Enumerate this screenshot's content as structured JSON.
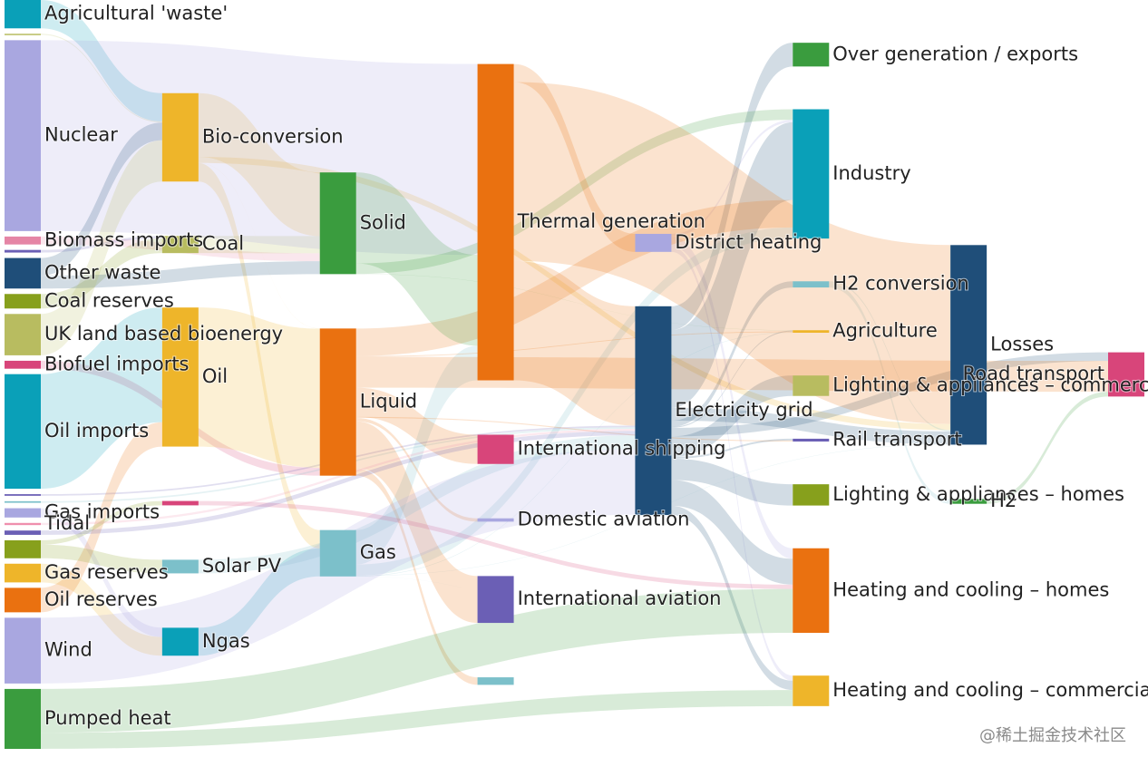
{
  "chart_data": {
    "type": "sankey",
    "watermark": "@稀土掘金技术社区",
    "nodes": [
      {
        "label": "Agricultural 'waste'",
        "color": "#0aa0b8"
      },
      {
        "label": null,
        "color": "#b8bc60"
      },
      {
        "label": "Nuclear",
        "color": "#a9a7e0"
      },
      {
        "label": "Biomass imports",
        "color": "#e585a5"
      },
      {
        "label": null,
        "color": "#6b5fb5"
      },
      {
        "label": "Other waste",
        "color": "#1f4e79"
      },
      {
        "label": "Coal reserves",
        "color": "#87a01c"
      },
      {
        "label": "UK land based bioenergy",
        "color": "#b8bc60"
      },
      {
        "label": "Biofuel imports",
        "color": "#d8457a"
      },
      {
        "label": "Oil imports",
        "color": "#0aa0b8"
      },
      {
        "label": null,
        "color": "#6b5fb5"
      },
      {
        "label": null,
        "color": "#7cc0ca"
      },
      {
        "label": "Gas imports",
        "color": "#a9a7e0"
      },
      {
        "label": "Tidal",
        "color": "#ef8fae"
      },
      {
        "label": null,
        "color": "#6b5fb5"
      },
      {
        "label": null,
        "color": "#87a01c"
      },
      {
        "label": "Gas reserves",
        "color": "#eeb52a"
      },
      {
        "label": "Oil reserves",
        "color": "#ea7110"
      },
      {
        "label": "Wind",
        "color": "#a9a7e0"
      },
      {
        "label": "Pumped heat",
        "color": "#3a9c3e"
      },
      {
        "label": "Bio-conversion",
        "color": "#eeb52a"
      },
      {
        "label": "Coal",
        "color": "#b8bc60"
      },
      {
        "label": "Oil",
        "color": "#eeb52a"
      },
      {
        "label": null,
        "color": "#d8457a"
      },
      {
        "label": "Solar PV",
        "color": "#7cc0ca"
      },
      {
        "label": "Ngas",
        "color": "#0aa0b8"
      },
      {
        "label": "Solid",
        "color": "#3a9c3e"
      },
      {
        "label": "Liquid",
        "color": "#ea7110"
      },
      {
        "label": "Gas",
        "color": "#7cc0ca"
      },
      {
        "label": "Thermal generation",
        "color": "#ea7110"
      },
      {
        "label": "International shipping",
        "color": "#d8457a"
      },
      {
        "label": "Domestic aviation",
        "color": "#a9a7e0"
      },
      {
        "label": "International aviation",
        "color": "#6b5fb5"
      },
      {
        "label": null,
        "color": "#7cc0ca"
      },
      {
        "label": "District heating",
        "color": "#a9a7e0"
      },
      {
        "label": "Electricity grid",
        "color": "#1f4e79"
      },
      {
        "label": "Over generation / exports",
        "color": "#3a9c3e"
      },
      {
        "label": "Industry",
        "color": "#0aa0b8"
      },
      {
        "label": "H2 conversion",
        "color": "#7cc0ca"
      },
      {
        "label": "Agriculture",
        "color": "#eeb52a"
      },
      {
        "label": "Lighting & appliances – commercial",
        "color": "#b8bc60"
      },
      {
        "label": "Rail transport",
        "color": "#6b5fb5"
      },
      {
        "label": "Lighting & appliances – homes",
        "color": "#87a01c"
      },
      {
        "label": "Heating and cooling – homes",
        "color": "#ea7110"
      },
      {
        "label": "Heating and cooling – commercial",
        "color": "#eeb52a"
      },
      {
        "label": "Losses",
        "color": "#1f4e79"
      },
      {
        "label": "H2",
        "color": "#3a9c3e"
      },
      {
        "label": "Road transport",
        "color": "#d8457a"
      }
    ],
    "links": [
      {
        "source": 0,
        "target": 20,
        "value": 124.729
      },
      {
        "source": 20,
        "target": 27,
        "value": 0.597
      },
      {
        "source": 20,
        "target": 45,
        "value": 26.862
      },
      {
        "source": 20,
        "target": 26,
        "value": 280.322
      },
      {
        "source": 20,
        "target": 28,
        "value": 81.144
      },
      {
        "source": 8,
        "target": 27,
        "value": 35
      },
      {
        "source": 3,
        "target": 26,
        "value": 35
      },
      {
        "source": 4,
        "target": 21,
        "value": 11.606
      },
      {
        "source": 6,
        "target": 21,
        "value": 63.965
      },
      {
        "source": 21,
        "target": 26,
        "value": 75.571
      },
      {
        "source": 34,
        "target": 37,
        "value": 10.639
      },
      {
        "source": 34,
        "target": 44,
        "value": 22.505
      },
      {
        "source": 34,
        "target": 43,
        "value": 46.184
      },
      {
        "source": 35,
        "target": 36,
        "value": 104.453
      },
      {
        "source": 35,
        "target": 43,
        "value": 113.726
      },
      {
        "source": 35,
        "target": 38,
        "value": 27.14
      },
      {
        "source": 35,
        "target": 37,
        "value": 342.165
      },
      {
        "source": 35,
        "target": 47,
        "value": 37.797
      },
      {
        "source": 35,
        "target": 39,
        "value": 4.412
      },
      {
        "source": 35,
        "target": 44,
        "value": 40.858
      },
      {
        "source": 35,
        "target": 45,
        "value": 56.691
      },
      {
        "source": 35,
        "target": 41,
        "value": 7.863
      },
      {
        "source": 35,
        "target": 40,
        "value": 90.008
      },
      {
        "source": 35,
        "target": 42,
        "value": 93.494
      },
      {
        "source": 12,
        "target": 25,
        "value": 40.719
      },
      {
        "source": 16,
        "target": 25,
        "value": 82.233
      },
      {
        "source": 28,
        "target": 44,
        "value": 0.129
      },
      {
        "source": 28,
        "target": 45,
        "value": 1.401
      },
      {
        "source": 28,
        "target": 29,
        "value": 151.891
      },
      {
        "source": 28,
        "target": 39,
        "value": 2.096
      },
      {
        "source": 28,
        "target": 37,
        "value": 48.58
      },
      {
        "source": 10,
        "target": 35,
        "value": 7.013
      },
      {
        "source": 38,
        "target": 46,
        "value": 20.897
      },
      {
        "source": 38,
        "target": 45,
        "value": 6.242
      },
      {
        "source": 46,
        "target": 47,
        "value": 20.897
      },
      {
        "source": 11,
        "target": 35,
        "value": 6.995
      },
      {
        "source": 27,
        "target": 37,
        "value": 121.066
      },
      {
        "source": 27,
        "target": 30,
        "value": 128.69
      },
      {
        "source": 27,
        "target": 47,
        "value": 135.835
      },
      {
        "source": 27,
        "target": 31,
        "value": 14.458
      },
      {
        "source": 27,
        "target": 32,
        "value": 206.267
      },
      {
        "source": 27,
        "target": 39,
        "value": 3.64
      },
      {
        "source": 27,
        "target": 33,
        "value": 33.218
      },
      {
        "source": 27,
        "target": 41,
        "value": 4.413
      },
      {
        "source": 1,
        "target": 20,
        "value": 4.375
      },
      {
        "source": 25,
        "target": 28,
        "value": 122.952
      },
      {
        "source": 2,
        "target": 29,
        "value": 839.978
      },
      {
        "source": 9,
        "target": 22,
        "value": 504.287
      },
      {
        "source": 17,
        "target": 22,
        "value": 107.703
      },
      {
        "source": 22,
        "target": 27,
        "value": 611.99
      },
      {
        "source": 5,
        "target": 26,
        "value": 56.587
      },
      {
        "source": 5,
        "target": 20,
        "value": 77.81
      },
      {
        "source": 19,
        "target": 43,
        "value": 193.026
      },
      {
        "source": 19,
        "target": 44,
        "value": 70.672
      },
      {
        "source": 24,
        "target": 35,
        "value": 59.901
      },
      {
        "source": 23,
        "target": 43,
        "value": 19.263
      },
      {
        "source": 15,
        "target": 23,
        "value": 19.263
      },
      {
        "source": 15,
        "target": 24,
        "value": 59.901
      },
      {
        "source": 26,
        "target": 39,
        "value": 0.882
      },
      {
        "source": 26,
        "target": 29,
        "value": 400.12
      },
      {
        "source": 26,
        "target": 37,
        "value": 46.477
      },
      {
        "source": 29,
        "target": 35,
        "value": 525.531
      },
      {
        "source": 29,
        "target": 45,
        "value": 787.129
      },
      {
        "source": 29,
        "target": 34,
        "value": 79.329
      },
      {
        "source": 13,
        "target": 35,
        "value": 9.452
      },
      {
        "source": 7,
        "target": 20,
        "value": 182.01
      },
      {
        "source": 14,
        "target": 35,
        "value": 19.013
      },
      {
        "source": 18,
        "target": 35,
        "value": 289.366
      }
    ]
  }
}
